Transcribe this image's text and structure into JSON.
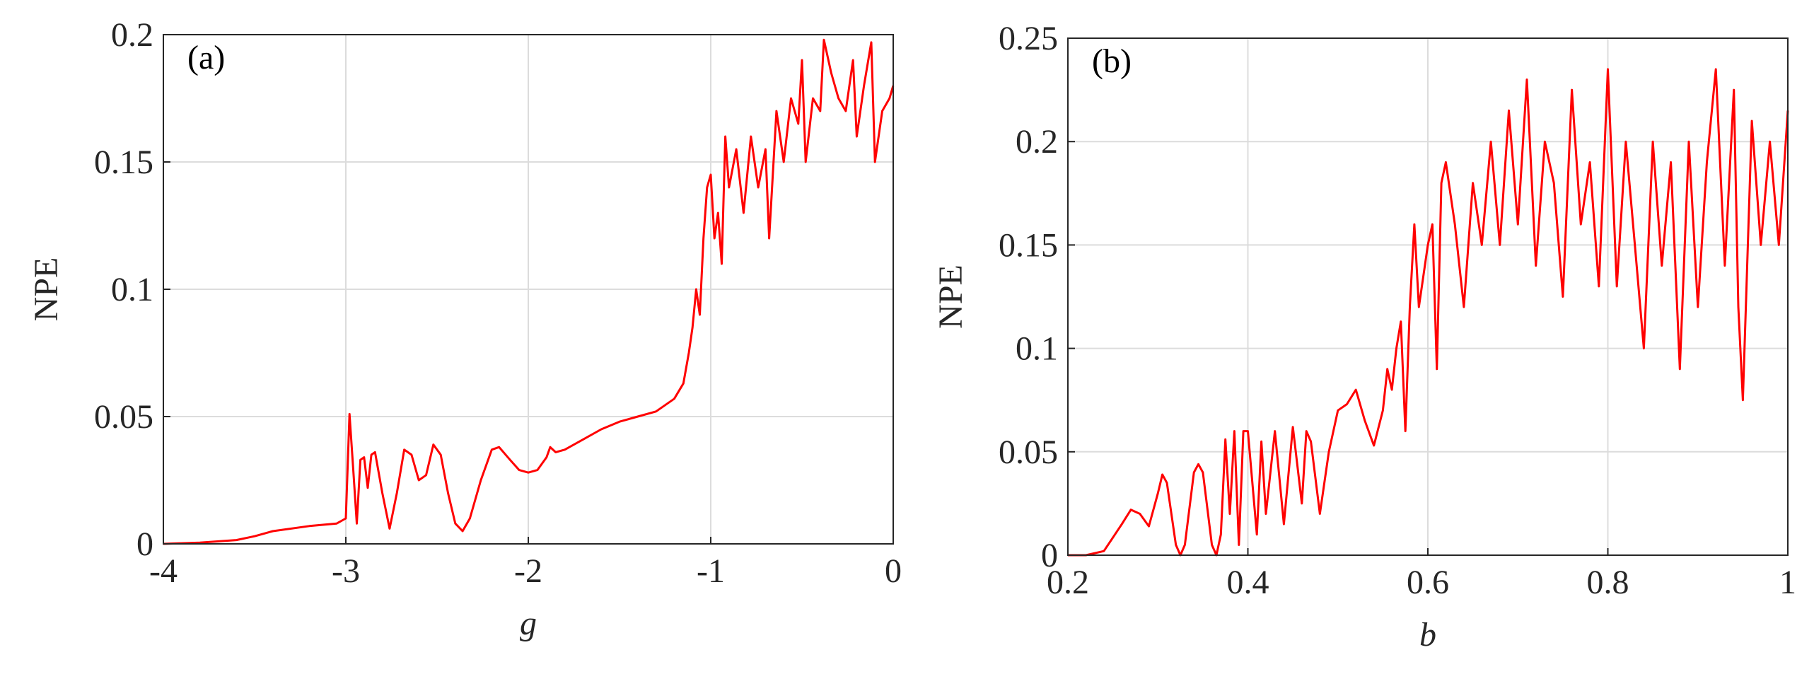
{
  "chart_data": [
    {
      "type": "line",
      "annotation": "(a)",
      "xlabel": "g",
      "ylabel": "NPE",
      "xlim": [
        -4,
        0
      ],
      "ylim": [
        0,
        0.2
      ],
      "xticks": [
        -4,
        -3,
        -2,
        -1,
        0
      ],
      "yticks": [
        0,
        0.05,
        0.1,
        0.15,
        0.2
      ],
      "grid": true,
      "series": [
        {
          "color": "#ff0000",
          "x": [
            -4,
            -3.8,
            -3.6,
            -3.5,
            -3.4,
            -3.2,
            -3.05,
            -3.0,
            -2.98,
            -2.96,
            -2.94,
            -2.92,
            -2.9,
            -2.88,
            -2.86,
            -2.84,
            -2.8,
            -2.76,
            -2.72,
            -2.68,
            -2.64,
            -2.6,
            -2.56,
            -2.52,
            -2.48,
            -2.44,
            -2.4,
            -2.36,
            -2.32,
            -2.26,
            -2.2,
            -2.16,
            -2.1,
            -2.05,
            -2.0,
            -1.95,
            -1.9,
            -1.88,
            -1.85,
            -1.8,
            -1.7,
            -1.6,
            -1.5,
            -1.4,
            -1.3,
            -1.2,
            -1.15,
            -1.12,
            -1.1,
            -1.08,
            -1.06,
            -1.04,
            -1.02,
            -1.0,
            -0.98,
            -0.96,
            -0.94,
            -0.92,
            -0.9,
            -0.86,
            -0.82,
            -0.78,
            -0.74,
            -0.7,
            -0.68,
            -0.64,
            -0.6,
            -0.56,
            -0.52,
            -0.5,
            -0.48,
            -0.44,
            -0.4,
            -0.38,
            -0.34,
            -0.3,
            -0.26,
            -0.22,
            -0.2,
            -0.16,
            -0.12,
            -0.1,
            -0.06,
            -0.02,
            0
          ],
          "values": [
            0,
            0.0005,
            0.0015,
            0.003,
            0.005,
            0.007,
            0.008,
            0.01,
            0.051,
            0.03,
            0.008,
            0.033,
            0.034,
            0.022,
            0.035,
            0.036,
            0.02,
            0.006,
            0.02,
            0.037,
            0.035,
            0.025,
            0.027,
            0.039,
            0.035,
            0.02,
            0.008,
            0.005,
            0.01,
            0.025,
            0.037,
            0.038,
            0.033,
            0.029,
            0.028,
            0.029,
            0.034,
            0.038,
            0.036,
            0.037,
            0.041,
            0.045,
            0.048,
            0.05,
            0.052,
            0.057,
            0.063,
            0.075,
            0.085,
            0.1,
            0.09,
            0.12,
            0.14,
            0.145,
            0.12,
            0.13,
            0.11,
            0.16,
            0.14,
            0.155,
            0.13,
            0.16,
            0.14,
            0.155,
            0.12,
            0.17,
            0.15,
            0.175,
            0.165,
            0.19,
            0.15,
            0.175,
            0.17,
            0.198,
            0.185,
            0.175,
            0.17,
            0.19,
            0.16,
            0.18,
            0.197,
            0.15,
            0.17,
            0.175,
            0.18
          ]
        }
      ]
    },
    {
      "type": "line",
      "annotation": "(b)",
      "xlabel": "b",
      "ylabel": "NPE",
      "xlim": [
        0.2,
        1
      ],
      "ylim": [
        0,
        0.25
      ],
      "xticks": [
        0.2,
        0.4,
        0.6,
        0.8,
        1
      ],
      "yticks": [
        0,
        0.05,
        0.1,
        0.15,
        0.2,
        0.25
      ],
      "grid": true,
      "series": [
        {
          "color": "#ff0000",
          "x": [
            0.2,
            0.22,
            0.24,
            0.26,
            0.27,
            0.28,
            0.29,
            0.3,
            0.305,
            0.31,
            0.32,
            0.325,
            0.33,
            0.34,
            0.345,
            0.35,
            0.36,
            0.365,
            0.37,
            0.375,
            0.38,
            0.385,
            0.39,
            0.395,
            0.4,
            0.41,
            0.415,
            0.42,
            0.43,
            0.44,
            0.45,
            0.46,
            0.465,
            0.47,
            0.48,
            0.49,
            0.5,
            0.51,
            0.52,
            0.53,
            0.54,
            0.55,
            0.555,
            0.56,
            0.565,
            0.57,
            0.575,
            0.58,
            0.585,
            0.59,
            0.6,
            0.605,
            0.61,
            0.615,
            0.62,
            0.63,
            0.64,
            0.65,
            0.66,
            0.67,
            0.68,
            0.69,
            0.7,
            0.71,
            0.72,
            0.73,
            0.74,
            0.75,
            0.76,
            0.77,
            0.78,
            0.79,
            0.8,
            0.81,
            0.82,
            0.83,
            0.84,
            0.85,
            0.86,
            0.87,
            0.88,
            0.89,
            0.9,
            0.91,
            0.92,
            0.93,
            0.94,
            0.945,
            0.95,
            0.96,
            0.97,
            0.98,
            0.99,
            1.0
          ],
          "values": [
            0,
            0,
            0.002,
            0.015,
            0.022,
            0.02,
            0.014,
            0.03,
            0.039,
            0.035,
            0.005,
            0,
            0.005,
            0.04,
            0.044,
            0.04,
            0.005,
            0,
            0.01,
            0.056,
            0.02,
            0.06,
            0.005,
            0.06,
            0.06,
            0.01,
            0.055,
            0.02,
            0.06,
            0.015,
            0.062,
            0.025,
            0.06,
            0.055,
            0.02,
            0.05,
            0.07,
            0.073,
            0.08,
            0.065,
            0.053,
            0.07,
            0.09,
            0.08,
            0.1,
            0.113,
            0.06,
            0.12,
            0.16,
            0.12,
            0.15,
            0.16,
            0.09,
            0.18,
            0.19,
            0.16,
            0.12,
            0.18,
            0.15,
            0.2,
            0.15,
            0.215,
            0.16,
            0.23,
            0.14,
            0.2,
            0.18,
            0.125,
            0.225,
            0.16,
            0.19,
            0.13,
            0.235,
            0.13,
            0.2,
            0.15,
            0.1,
            0.2,
            0.14,
            0.19,
            0.09,
            0.2,
            0.12,
            0.19,
            0.235,
            0.14,
            0.225,
            0.12,
            0.075,
            0.21,
            0.15,
            0.2,
            0.15,
            0.215
          ]
        }
      ]
    }
  ]
}
